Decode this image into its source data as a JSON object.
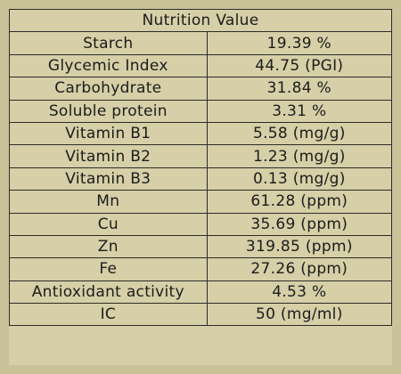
{
  "table": {
    "title": "Nutrition Value",
    "rows": [
      {
        "label": "Starch",
        "value": "19.39 %"
      },
      {
        "label": "Glycemic Index",
        "value": "44.75  (PGI)"
      },
      {
        "label": "Carbohydrate",
        "value": "31.84 %"
      },
      {
        "label": "Soluble protein",
        "value": "3.31 %"
      },
      {
        "label": "Vitamin B1",
        "value": "5.58  (mg/g)"
      },
      {
        "label": "Vitamin B2",
        "value": "1.23   (mg/g)"
      },
      {
        "label": "Vitamin B3",
        "value": "0.13  (mg/g)"
      },
      {
        "label": "Mn",
        "value": "61.28 (ppm)"
      },
      {
        "label": "Cu",
        "value": "35.69 (ppm)"
      },
      {
        "label": "Zn",
        "value": "319.85 (ppm)"
      },
      {
        "label": "Fe",
        "value": "27.26 (ppm)"
      },
      {
        "label": "Antioxidant activity",
        "value": "4.53 %"
      },
      {
        "label": "IC",
        "value": "50 (mg/ml)"
      }
    ]
  },
  "colors": {
    "background": "#cac39a",
    "table_fill": "#d6cfa7",
    "border": "#2c2c28",
    "text": "#1c1c1c"
  }
}
